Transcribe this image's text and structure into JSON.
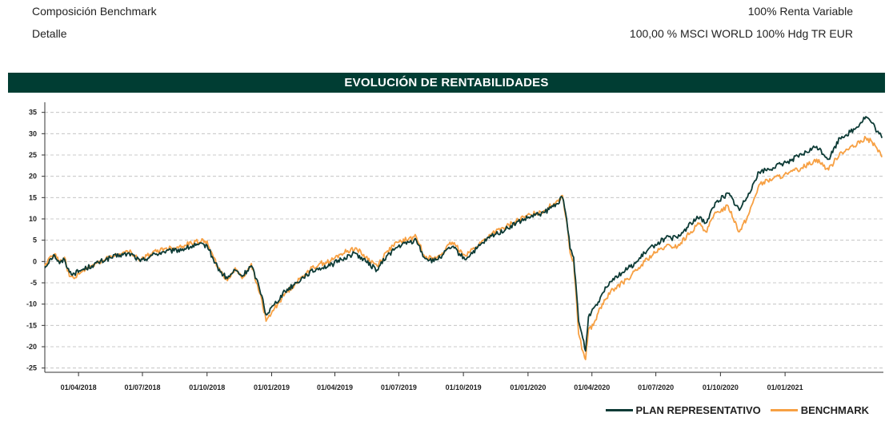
{
  "info": {
    "row1_label": "Composición Benchmark",
    "row1_value": "100% Renta Variable",
    "row2_label": "Detalle",
    "row2_value": "100,00 % MSCI WORLD 100% Hdg TR EUR"
  },
  "colors": {
    "banner": "#003d33",
    "plan": "#0d3b36",
    "benchmark": "#f7a043",
    "grid": "#bbbbbb"
  },
  "chart_data": {
    "type": "line",
    "title": "EVOLUCIÓN DE RENTABILIDADES",
    "xlabel": "",
    "ylabel": "",
    "ylim": [
      -26,
      37
    ],
    "yticks": [
      35,
      30,
      25,
      20,
      15,
      10,
      5,
      0,
      -5,
      -10,
      -15,
      -20,
      -25
    ],
    "xlim": [
      "2018-02-12",
      "2021-05-21"
    ],
    "xticks": [
      "01/04/2018",
      "01/07/2018",
      "01/10/2018",
      "01/01/2019",
      "01/04/2019",
      "01/07/2019",
      "01/10/2019",
      "01/01/2020",
      "01/04/2020",
      "01/07/2020",
      "01/10/2020",
      "01/01/2021"
    ],
    "grid": true,
    "legend_position": "bottom-right",
    "series": [
      {
        "name": "PLAN REPRESENTATIVO",
        "color": "#0d3b36",
        "points": [
          [
            "2018-02-12",
            -1.5
          ],
          [
            "2018-02-19",
            0.5
          ],
          [
            "2018-02-26",
            1.5
          ],
          [
            "2018-03-05",
            -0.5
          ],
          [
            "2018-03-12",
            0.5
          ],
          [
            "2018-03-19",
            -2.5
          ],
          [
            "2018-03-26",
            -2.8
          ],
          [
            "2018-04-05",
            -2.0
          ],
          [
            "2018-04-20",
            -1.0
          ],
          [
            "2018-05-10",
            0.5
          ],
          [
            "2018-05-30",
            1.5
          ],
          [
            "2018-06-15",
            1.8
          ],
          [
            "2018-06-28",
            0.0
          ],
          [
            "2018-07-15",
            1.5
          ],
          [
            "2018-08-01",
            2.3
          ],
          [
            "2018-08-15",
            2.5
          ],
          [
            "2018-08-30",
            3.0
          ],
          [
            "2018-09-15",
            3.8
          ],
          [
            "2018-10-01",
            3.8
          ],
          [
            "2018-10-10",
            0.5
          ],
          [
            "2018-10-20",
            -2.5
          ],
          [
            "2018-10-30",
            -4.0
          ],
          [
            "2018-11-10",
            -2.0
          ],
          [
            "2018-11-20",
            -3.5
          ],
          [
            "2018-12-03",
            -1.0
          ],
          [
            "2018-12-10",
            -4.0
          ],
          [
            "2018-12-18",
            -8.0
          ],
          [
            "2018-12-24",
            -12.5
          ],
          [
            "2019-01-05",
            -10.0
          ],
          [
            "2019-01-20",
            -7.0
          ],
          [
            "2019-02-05",
            -5.0
          ],
          [
            "2019-02-20",
            -3.0
          ],
          [
            "2019-03-10",
            -1.5
          ],
          [
            "2019-03-25",
            -1.0
          ],
          [
            "2019-04-10",
            0.5
          ],
          [
            "2019-04-30",
            2.0
          ],
          [
            "2019-05-15",
            0.0
          ],
          [
            "2019-05-31",
            -2.0
          ],
          [
            "2019-06-15",
            1.5
          ],
          [
            "2019-06-30",
            3.5
          ],
          [
            "2019-07-15",
            4.5
          ],
          [
            "2019-07-26",
            5.0
          ],
          [
            "2019-08-06",
            1.0
          ],
          [
            "2019-08-20",
            0.0
          ],
          [
            "2019-09-01",
            1.5
          ],
          [
            "2019-09-15",
            3.5
          ],
          [
            "2019-10-03",
            0.5
          ],
          [
            "2019-10-20",
            3.0
          ],
          [
            "2019-11-10",
            6.0
          ],
          [
            "2019-11-30",
            7.5
          ],
          [
            "2019-12-15",
            9.0
          ],
          [
            "2020-01-05",
            10.5
          ],
          [
            "2020-01-25",
            11.5
          ],
          [
            "2020-02-10",
            13.5
          ],
          [
            "2020-02-19",
            15.0
          ],
          [
            "2020-02-25",
            10.0
          ],
          [
            "2020-03-01",
            3.0
          ],
          [
            "2020-03-06",
            1.0
          ],
          [
            "2020-03-10",
            -7.0
          ],
          [
            "2020-03-13",
            -14.0
          ],
          [
            "2020-03-19",
            -18.0
          ],
          [
            "2020-03-23",
            -21.0
          ],
          [
            "2020-03-27",
            -13.0
          ],
          [
            "2020-04-03",
            -11.0
          ],
          [
            "2020-04-10",
            -9.5
          ],
          [
            "2020-04-20",
            -6.0
          ],
          [
            "2020-05-01",
            -4.0
          ],
          [
            "2020-05-15",
            -2.5
          ],
          [
            "2020-06-05",
            0.0
          ],
          [
            "2020-06-15",
            2.0
          ],
          [
            "2020-06-30",
            4.0
          ],
          [
            "2020-07-15",
            5.5
          ],
          [
            "2020-08-01",
            5.5
          ],
          [
            "2020-08-20",
            9.0
          ],
          [
            "2020-09-02",
            10.5
          ],
          [
            "2020-09-10",
            9.0
          ],
          [
            "2020-09-25",
            14.0
          ],
          [
            "2020-10-12",
            16.0
          ],
          [
            "2020-10-28",
            12.0
          ],
          [
            "2020-11-10",
            16.0
          ],
          [
            "2020-11-25",
            21.0
          ],
          [
            "2020-12-15",
            22.0
          ],
          [
            "2021-01-05",
            23.5
          ],
          [
            "2021-01-25",
            25.0
          ],
          [
            "2021-02-15",
            27.0
          ],
          [
            "2021-03-04",
            24.0
          ],
          [
            "2021-03-20",
            29.0
          ],
          [
            "2021-04-10",
            31.0
          ],
          [
            "2021-04-26",
            34.0
          ],
          [
            "2021-05-05",
            32.5
          ],
          [
            "2021-05-12",
            30.5
          ],
          [
            "2021-05-19",
            29.0
          ]
        ]
      },
      {
        "name": "BENCHMARK",
        "color": "#f7a043",
        "points": [
          [
            "2018-02-12",
            -1.0
          ],
          [
            "2018-02-19",
            1.0
          ],
          [
            "2018-02-26",
            1.8
          ],
          [
            "2018-03-05",
            -0.2
          ],
          [
            "2018-03-12",
            1.0
          ],
          [
            "2018-03-19",
            -3.5
          ],
          [
            "2018-03-26",
            -4.0
          ],
          [
            "2018-04-05",
            -2.5
          ],
          [
            "2018-04-20",
            -1.0
          ],
          [
            "2018-05-10",
            0.8
          ],
          [
            "2018-05-30",
            1.8
          ],
          [
            "2018-06-15",
            2.2
          ],
          [
            "2018-06-28",
            0.3
          ],
          [
            "2018-07-15",
            2.0
          ],
          [
            "2018-08-01",
            3.0
          ],
          [
            "2018-08-15",
            3.2
          ],
          [
            "2018-08-30",
            3.8
          ],
          [
            "2018-09-15",
            4.8
          ],
          [
            "2018-10-01",
            4.8
          ],
          [
            "2018-10-10",
            1.0
          ],
          [
            "2018-10-20",
            -2.5
          ],
          [
            "2018-10-30",
            -4.5
          ],
          [
            "2018-11-10",
            -1.5
          ],
          [
            "2018-11-20",
            -4.0
          ],
          [
            "2018-12-03",
            -0.5
          ],
          [
            "2018-12-10",
            -5.0
          ],
          [
            "2018-12-18",
            -9.0
          ],
          [
            "2018-12-24",
            -14.0
          ],
          [
            "2019-01-05",
            -11.0
          ],
          [
            "2019-01-20",
            -7.5
          ],
          [
            "2019-02-05",
            -5.0
          ],
          [
            "2019-02-20",
            -2.5
          ],
          [
            "2019-03-10",
            -0.5
          ],
          [
            "2019-03-25",
            0.0
          ],
          [
            "2019-04-10",
            1.8
          ],
          [
            "2019-04-30",
            3.2
          ],
          [
            "2019-05-15",
            1.0
          ],
          [
            "2019-05-31",
            -1.0
          ],
          [
            "2019-06-15",
            2.5
          ],
          [
            "2019-06-30",
            4.5
          ],
          [
            "2019-07-15",
            5.3
          ],
          [
            "2019-07-26",
            5.8
          ],
          [
            "2019-08-06",
            1.5
          ],
          [
            "2019-08-20",
            0.5
          ],
          [
            "2019-09-01",
            2.0
          ],
          [
            "2019-09-15",
            4.5
          ],
          [
            "2019-10-03",
            1.5
          ],
          [
            "2019-10-20",
            3.5
          ],
          [
            "2019-11-10",
            6.5
          ],
          [
            "2019-11-30",
            8.0
          ],
          [
            "2019-12-15",
            9.5
          ],
          [
            "2020-01-05",
            11.0
          ],
          [
            "2020-01-25",
            12.0
          ],
          [
            "2020-02-10",
            14.0
          ],
          [
            "2020-02-19",
            15.5
          ],
          [
            "2020-02-25",
            9.5
          ],
          [
            "2020-03-01",
            2.0
          ],
          [
            "2020-03-06",
            0.0
          ],
          [
            "2020-03-10",
            -9.0
          ],
          [
            "2020-03-13",
            -17.0
          ],
          [
            "2020-03-19",
            -21.0
          ],
          [
            "2020-03-23",
            -23.0
          ],
          [
            "2020-03-27",
            -16.0
          ],
          [
            "2020-04-03",
            -15.0
          ],
          [
            "2020-04-10",
            -12.0
          ],
          [
            "2020-04-20",
            -9.0
          ],
          [
            "2020-05-01",
            -6.5
          ],
          [
            "2020-05-15",
            -5.0
          ],
          [
            "2020-06-05",
            -2.0
          ],
          [
            "2020-06-15",
            0.0
          ],
          [
            "2020-06-30",
            2.0
          ],
          [
            "2020-07-15",
            3.5
          ],
          [
            "2020-08-01",
            3.5
          ],
          [
            "2020-08-20",
            7.0
          ],
          [
            "2020-09-02",
            9.0
          ],
          [
            "2020-09-10",
            7.0
          ],
          [
            "2020-09-25",
            11.5
          ],
          [
            "2020-10-12",
            13.0
          ],
          [
            "2020-10-28",
            7.0
          ],
          [
            "2020-11-10",
            11.0
          ],
          [
            "2020-11-25",
            18.0
          ],
          [
            "2020-12-15",
            19.5
          ],
          [
            "2021-01-05",
            20.5
          ],
          [
            "2021-01-25",
            22.0
          ],
          [
            "2021-02-15",
            24.0
          ],
          [
            "2021-03-04",
            21.5
          ],
          [
            "2021-03-20",
            25.5
          ],
          [
            "2021-04-10",
            27.0
          ],
          [
            "2021-04-26",
            29.0
          ],
          [
            "2021-05-05",
            28.0
          ],
          [
            "2021-05-12",
            26.5
          ],
          [
            "2021-05-19",
            24.5
          ]
        ]
      }
    ]
  }
}
